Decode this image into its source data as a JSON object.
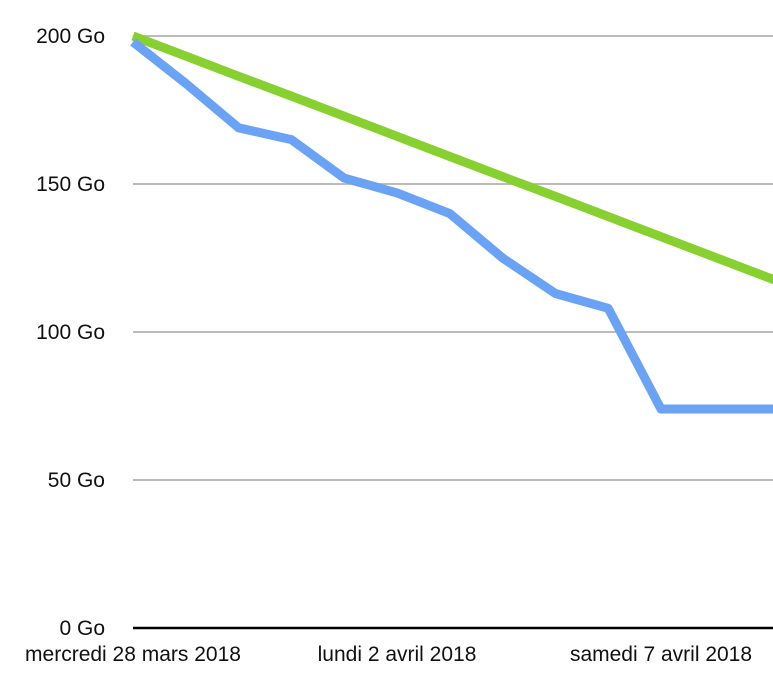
{
  "chart_data": {
    "type": "line",
    "x_dates": [
      "2018-03-28",
      "2018-03-29",
      "2018-03-30",
      "2018-03-31",
      "2018-04-01",
      "2018-04-02",
      "2018-04-03",
      "2018-04-04",
      "2018-04-05",
      "2018-04-06",
      "2018-04-07",
      "2018-04-08",
      "2018-04-09",
      "2018-04-10"
    ],
    "xtick_labels": [
      {
        "date": "2018-03-28",
        "label": "mercredi 28 mars 2018"
      },
      {
        "date": "2018-04-02",
        "label": "lundi 2 avril 2018"
      },
      {
        "date": "2018-04-07",
        "label": "samedi 7 avril 2018"
      }
    ],
    "ytick_labels": [
      {
        "value": 0,
        "label": "0 Go"
      },
      {
        "value": 50,
        "label": "50 Go"
      },
      {
        "value": 100,
        "label": "100 Go"
      },
      {
        "value": 150,
        "label": "150 Go"
      },
      {
        "value": 200,
        "label": "200 Go"
      }
    ],
    "ylim": [
      0,
      200
    ],
    "grid": true,
    "series": [
      {
        "color": "#86d02f",
        "values": [
          200,
          193.2,
          186.4,
          179.7,
          172.9,
          166.1,
          159.3,
          152.5,
          145.8,
          139.0,
          132.2,
          125.4,
          118.6,
          111.9
        ]
      },
      {
        "color": "#6aa3f5",
        "values": [
          198,
          184,
          169,
          165,
          152,
          147,
          140,
          125,
          113,
          108,
          74,
          74,
          74,
          74
        ]
      }
    ]
  }
}
